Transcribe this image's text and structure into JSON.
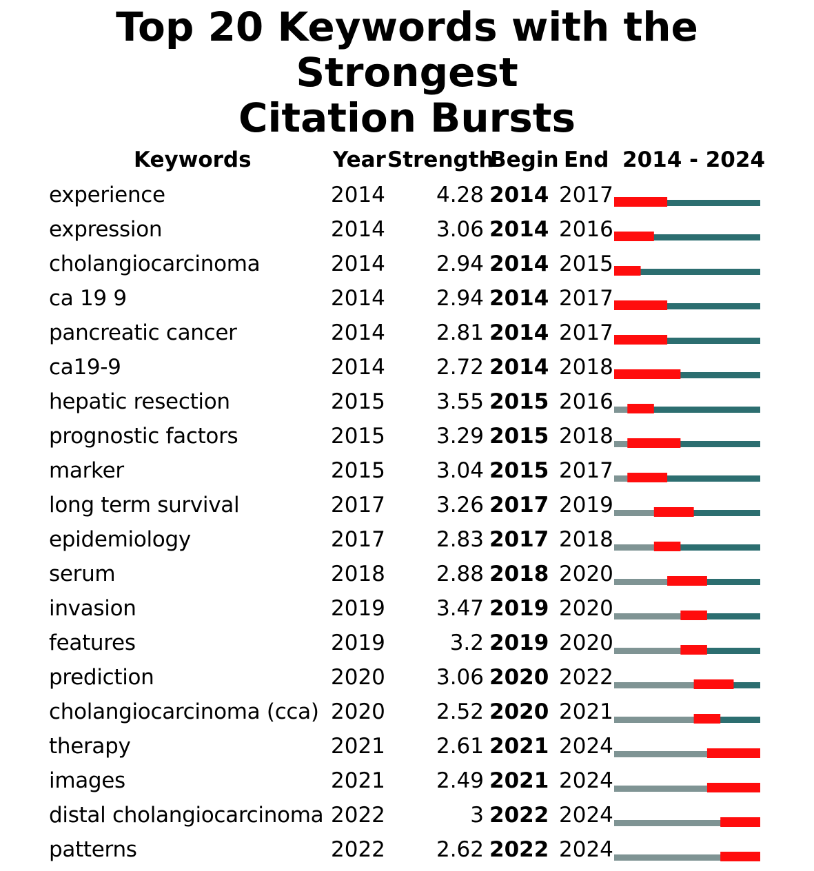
{
  "title_line1": "Top 20 Keywords with the Strongest",
  "title_line2": "Citation Bursts",
  "headers": {
    "keywords": "Keywords",
    "year": "Year",
    "strength": "Strength",
    "begin": "Begin",
    "end": "End",
    "range": "2014 - 2024"
  },
  "colors": {
    "burst": "#ff0d0d",
    "active": "#2c6e70",
    "inactive": "#7f9494"
  },
  "chart_data": {
    "type": "table",
    "timeline_start": 2014,
    "timeline_end": 2024,
    "rows": [
      {
        "keyword": "experience",
        "year": "2014",
        "strength": "4.28",
        "begin": "2014",
        "end": "2017"
      },
      {
        "keyword": "expression",
        "year": "2014",
        "strength": "3.06",
        "begin": "2014",
        "end": "2016"
      },
      {
        "keyword": "cholangiocarcinoma",
        "year": "2014",
        "strength": "2.94",
        "begin": "2014",
        "end": "2015"
      },
      {
        "keyword": "ca 19 9",
        "year": "2014",
        "strength": "2.94",
        "begin": "2014",
        "end": "2017"
      },
      {
        "keyword": "pancreatic cancer",
        "year": "2014",
        "strength": "2.81",
        "begin": "2014",
        "end": "2017"
      },
      {
        "keyword": "ca19-9",
        "year": "2014",
        "strength": "2.72",
        "begin": "2014",
        "end": "2018"
      },
      {
        "keyword": "hepatic resection",
        "year": "2015",
        "strength": "3.55",
        "begin": "2015",
        "end": "2016"
      },
      {
        "keyword": "prognostic factors",
        "year": "2015",
        "strength": "3.29",
        "begin": "2015",
        "end": "2018"
      },
      {
        "keyword": "marker",
        "year": "2015",
        "strength": "3.04",
        "begin": "2015",
        "end": "2017"
      },
      {
        "keyword": "long term survival",
        "year": "2017",
        "strength": "3.26",
        "begin": "2017",
        "end": "2019"
      },
      {
        "keyword": "epidemiology",
        "year": "2017",
        "strength": "2.83",
        "begin": "2017",
        "end": "2018"
      },
      {
        "keyword": "serum",
        "year": "2018",
        "strength": "2.88",
        "begin": "2018",
        "end": "2020"
      },
      {
        "keyword": "invasion",
        "year": "2019",
        "strength": "3.47",
        "begin": "2019",
        "end": "2020"
      },
      {
        "keyword": "features",
        "year": "2019",
        "strength": "3.2",
        "begin": "2019",
        "end": "2020"
      },
      {
        "keyword": "prediction",
        "year": "2020",
        "strength": "3.06",
        "begin": "2020",
        "end": "2022"
      },
      {
        "keyword": "cholangiocarcinoma (cca)",
        "year": "2020",
        "strength": "2.52",
        "begin": "2020",
        "end": "2021"
      },
      {
        "keyword": "therapy",
        "year": "2021",
        "strength": "2.61",
        "begin": "2021",
        "end": "2024"
      },
      {
        "keyword": "images",
        "year": "2021",
        "strength": "2.49",
        "begin": "2021",
        "end": "2024"
      },
      {
        "keyword": "distal cholangiocarcinoma",
        "year": "2022",
        "strength": "3",
        "begin": "2022",
        "end": "2024"
      },
      {
        "keyword": "patterns",
        "year": "2022",
        "strength": "2.62",
        "begin": "2022",
        "end": "2024"
      }
    ]
  }
}
